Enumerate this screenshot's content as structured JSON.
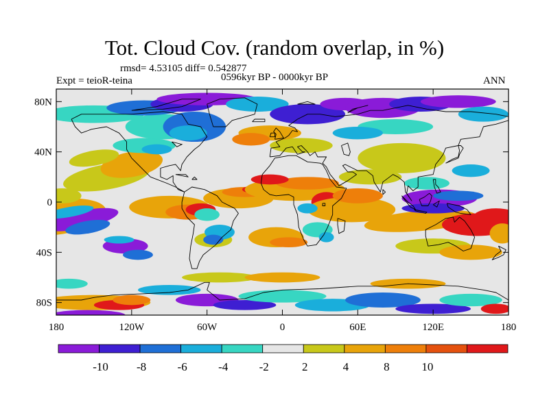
{
  "title": "Tot. Cloud Cov. (random overlap, in %)",
  "stats": "rmsd= 4.53105 diff= 0.542877",
  "experiment": "Expt = teioR-teina",
  "period": "0596kyr BP - 0000kyr BP",
  "season": "ANN",
  "axes": {
    "y_ticks": [
      {
        "label": "80N",
        "value": 80
      },
      {
        "label": "40N",
        "value": 40
      },
      {
        "label": "0",
        "value": 0
      },
      {
        "label": "40S",
        "value": -40
      },
      {
        "label": "80S",
        "value": -80
      }
    ],
    "x_ticks": [
      {
        "label": "180",
        "value": -180
      },
      {
        "label": "120W",
        "value": -120
      },
      {
        "label": "60W",
        "value": -60
      },
      {
        "label": "0",
        "value": 0
      },
      {
        "label": "60E",
        "value": 60
      },
      {
        "label": "120E",
        "value": 120
      },
      {
        "label": "180",
        "value": 180
      }
    ],
    "lon_range": [
      -180,
      180
    ],
    "lat_range": [
      -90,
      90
    ]
  },
  "colorbar": {
    "colors": [
      "#8a1bd8",
      "#3e1fd2",
      "#1f6fd6",
      "#1aaedb",
      "#37d6c2",
      "#e6e6e6",
      "#c8c81a",
      "#e8a40a",
      "#ee7f0a",
      "#e5510e",
      "#e0181a"
    ],
    "labels": [
      {
        "text": "-10",
        "boundary": 1
      },
      {
        "text": "-8",
        "boundary": 2
      },
      {
        "text": "-6",
        "boundary": 3
      },
      {
        "text": "-4",
        "boundary": 4
      },
      {
        "text": "-2",
        "boundary": 5
      },
      {
        "text": "2",
        "boundary": 6
      },
      {
        "text": "4",
        "boundary": 7
      },
      {
        "text": "8",
        "boundary": 8
      },
      {
        "text": "10",
        "boundary": 9
      }
    ]
  },
  "field_colors": {
    "purple": "#8a1bd8",
    "dkblue": "#3e1fd2",
    "blue": "#1f6fd6",
    "cyan": "#1aaedb",
    "teal": "#37d6c2",
    "grey": "#e6e6e6",
    "yellow": "#c8c81a",
    "ltorange": "#e8a40a",
    "orange": "#ee7f0a",
    "dkorange": "#e5510e",
    "red": "#e0181a"
  }
}
